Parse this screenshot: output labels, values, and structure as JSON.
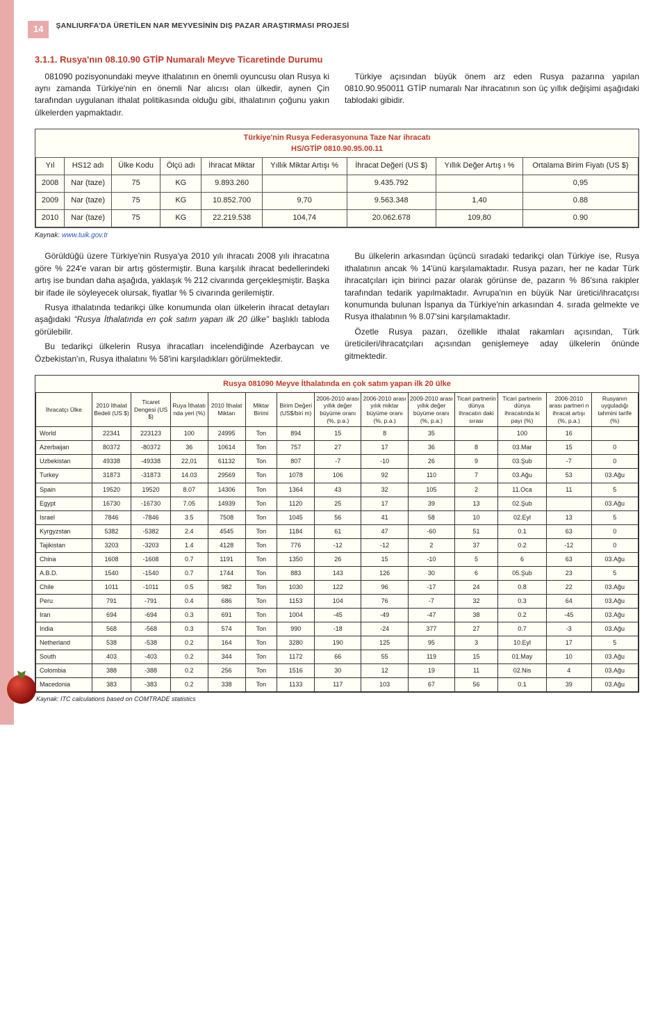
{
  "page_number": "14",
  "report_title": "ŞANLIURFA'DA ÜRETİLEN NAR MEYVESİNİN DIŞ PAZAR ARAŞTIRMASI PROJESİ",
  "section_heading": "3.1.1. Rusya'nın 08.10.90 GTİP Numaralı Meyve Ticaretinde Durumu",
  "intro": {
    "p1": "081090 pozisyonundaki meyve ithalatının en önemli oyuncusu olan Rusya ki aynı zamanda Türkiye'nin en önemli Nar alıcısı olan ülkedir, aynen Çin tarafından uygulanan ithalat politikasında olduğu gibi, ithalatının çoğunu yakın ülkelerden yapmaktadır.",
    "p2": "Türkiye açısından büyük önem arz eden Rusya pazarına yapılan 0810.90.950011 GTİP numaralı Nar ihracatının son üç yıllık değişimi aşağıdaki tablodaki gibidir."
  },
  "table1": {
    "title": "Türkiye'nin Rusya Federasyonuna Taze Nar ihracatı\nHS/GTİP 0810.90.95.00.11",
    "headers": [
      "Yıl",
      "HS12 adı",
      "Ülke Kodu",
      "Ölçü adı",
      "İhracat Miktar",
      "Yıllık Miktar Artışı %",
      "İhracat Değeri (US $)",
      "Yıllık Değer Artış ı %",
      "Ortalama Birim Fiyatı (US $)"
    ],
    "rows": [
      [
        "2008",
        "Nar (taze)",
        "75",
        "KG",
        "9.893.260",
        "",
        "9.435.792",
        "",
        "0,95"
      ],
      [
        "2009",
        "Nar (taze)",
        "75",
        "KG",
        "10.852.700",
        "9,70",
        "9.563.348",
        "1,40",
        "0.88"
      ],
      [
        "2010",
        "Nar (taze)",
        "75",
        "KG",
        "22.219.538",
        "104,74",
        "20.062.678",
        "109,80",
        "0.90"
      ]
    ],
    "source_label": "Kaynak:",
    "source_link": "www.tuik.gov.tr"
  },
  "mid": {
    "p1": "Görüldüğü üzere Türkiye'nin Rusya'ya 2010 yılı ihracatı 2008 yılı ihracatına göre % 224'e varan bir artış göstermiştir. Buna karşılık ihracat bedellerindeki artış ise bundan daha aşağıda, yaklaşık % 212 civarında gerçekleşmiştir. Başka bir ifade ile söyleyecek olursak, fiyatlar % 5 civarında gerilemiştir.",
    "p2a": "Rusya ithalatında tedarikçi ülke konumunda olan ülkelerin ihracat detayları aşağıdaki ",
    "p2b": "“Rusya İthalatında en çok satım yapan ilk 20 ülke”",
    "p2c": " başlıklı tabloda görülebilir.",
    "p3": "Bu tedarikçi ülkelerin Rusya ihracatları incelendiğinde Azerbaycan ve Özbekistan'ın, Rusya ithalatını % 58'ini karşıladıkları görülmektedir.",
    "p4": "Bu ülkelerin arkasından üçüncü sıradaki tedarikçi olan Türkiye ise, Rusya ithalatının ancak % 14'ünü karşılamaktadır. Rusya pazarı, her ne kadar Türk ihracatçıları için birinci pazar olarak görünse de, pazarın % 86'sına rakipler tarafından tedarik yapılmaktadır. Avrupa'nın en büyük Nar üretici/ihracatçısı konumunda bulunan İspanya da Türkiye'nin arkasından 4. sırada gelmekte ve Rusya ithalatının % 8.07'sini karşılamaktadır.",
    "p5": "Özetle Rusya pazarı, özellikle ithalat rakamları açısından, Türk üreticileri/ihracatçıları açısından genişlemeye aday ülkelerin önünde gitmektedir."
  },
  "table2": {
    "title": "Rusya 081090 Meyve İthalatında en çok satım yapan ilk 20 ülke",
    "headers": [
      "İhracatçı Ülke",
      "2010 İthalat Bedeli (US $)",
      "Ticaret Dengesi (US $)",
      "Ruya İthalatı nda yeri (%)",
      "2010 İthalat Miktarı",
      "Miktar Birimi",
      "Birim Değeri (US$/biri m)",
      "2006-2010 arası yıllık değer büyüme oranı (%, p.a.)",
      "2006-2010 arası yılık miktar büyüme oranı (%, p.a.)",
      "2009-2010 arası yıllık değer büyüme oranı (%, p.a.)",
      "Ticari partnerin dünya ihracatın daki sırası",
      "Ticari partnerin dünya ihracatında ki payı (%)",
      "2006-2010 arası partneri n ihracat artışı (%, p.a.)",
      "Rusyanın uyguladığı tahmini tarife (%)"
    ],
    "rows": [
      [
        "World",
        "22341",
        "223123",
        "100",
        "24995",
        "Ton",
        "894",
        "15",
        "8",
        "35",
        "",
        "100",
        "16",
        ""
      ],
      [
        "Azerbaijan",
        "80372",
        "-80372",
        "36",
        "10614",
        "Ton",
        "757",
        "27",
        "17",
        "36",
        "8",
        "03.Mar",
        "15",
        "0"
      ],
      [
        "Uzbekistan",
        "49338",
        "-49338",
        "22,01",
        "61132",
        "Ton",
        "807",
        "-7",
        "-10",
        "26",
        "9",
        "03.Şub",
        "-7",
        "0"
      ],
      [
        "Turkey",
        "31873",
        "-31873",
        "14.03",
        "29569",
        "Ton",
        "1078",
        "106",
        "92",
        "110",
        "7",
        "03.Ağu",
        "53",
        "03.Ağu"
      ],
      [
        "Spain",
        "19520",
        "19520",
        "8.07",
        "14306",
        "Ton",
        "1364",
        "43",
        "32",
        "105",
        "2",
        "11.Oca",
        "11",
        "5"
      ],
      [
        "Egypt",
        "16730",
        "-16730",
        "7.05",
        "14939",
        "Ton",
        "1120",
        "25",
        "17",
        "39",
        "13",
        "02.Şub",
        "",
        "03.Ağu"
      ],
      [
        "Israel",
        "7846",
        "-7846",
        "3.5",
        "7508",
        "Ton",
        "1045",
        "56",
        "41",
        "58",
        "10",
        "02.Eyl",
        "13",
        "5"
      ],
      [
        "Kyrgyzstan",
        "5382",
        "-5382",
        "2.4",
        "4545",
        "Ton",
        "1184",
        "61",
        "47",
        "-60",
        "51",
        "0.1",
        "63",
        "0"
      ],
      [
        "Tajikistan",
        "3203",
        "-3203",
        "1.4",
        "4128",
        "Ton",
        "776",
        "-12",
        "-12",
        "2",
        "37",
        "0.2",
        "-12",
        "0"
      ],
      [
        "China",
        "1608",
        "-1608",
        "0.7",
        "1191",
        "Ton",
        "1350",
        "26",
        "15",
        "-10",
        "5",
        "6",
        "63",
        "03.Ağu"
      ],
      [
        "A.B.D.",
        "1540",
        "-1540",
        "0.7",
        "1744",
        "Ton",
        "883",
        "143",
        "126",
        "30",
        "6",
        "05.Şub",
        "23",
        "5"
      ],
      [
        "Chile",
        "1011",
        "-1011",
        "0.5",
        "982",
        "Ton",
        "1030",
        "122",
        "96",
        "-17",
        "24",
        "0.8",
        "22",
        "03.Ağu"
      ],
      [
        "Peru",
        "791",
        "-791",
        "0.4",
        "686",
        "Ton",
        "1153",
        "104",
        "76",
        "-7",
        "32",
        "0.3",
        "64",
        "03.Ağu"
      ],
      [
        "Iran",
        "694",
        "-694",
        "0.3",
        "691",
        "Ton",
        "1004",
        "-45",
        "-49",
        "-47",
        "38",
        "0.2",
        "-45",
        "03.Ağu"
      ],
      [
        "India",
        "568",
        "-568",
        "0.3",
        "574",
        "Ton",
        "990",
        "-18",
        "-24",
        "377",
        "27",
        "0.7",
        "-3",
        "03.Ağu"
      ],
      [
        "Netherland",
        "538",
        "-538",
        "0.2",
        "164",
        "Ton",
        "3280",
        "190",
        "125",
        "95",
        "3",
        "10.Eyl",
        "17",
        "5"
      ],
      [
        "South",
        "403",
        "-403",
        "0.2",
        "344",
        "Ton",
        "1172",
        "66",
        "55",
        "119",
        "15",
        "01.May",
        "10",
        "03.Ağu"
      ],
      [
        "Colombia",
        "388",
        "-388",
        "0.2",
        "256",
        "Ton",
        "1516",
        "30",
        "12",
        "19",
        "11",
        "02.Nis",
        "4",
        "03.Ağu"
      ],
      [
        "Macedonia",
        "383",
        "-383",
        "0.2",
        "338",
        "Ton",
        "1133",
        "117",
        "103",
        "67",
        "56",
        "0.1",
        "39",
        "03.Ağu"
      ]
    ],
    "source": "Kaynak: ITC calculations based on COMTRADE statistics"
  },
  "col_widths_tbl2": [
    "60",
    "42",
    "42",
    "40",
    "40",
    "34",
    "40",
    "50",
    "50",
    "50",
    "46",
    "52",
    "48",
    "50"
  ]
}
